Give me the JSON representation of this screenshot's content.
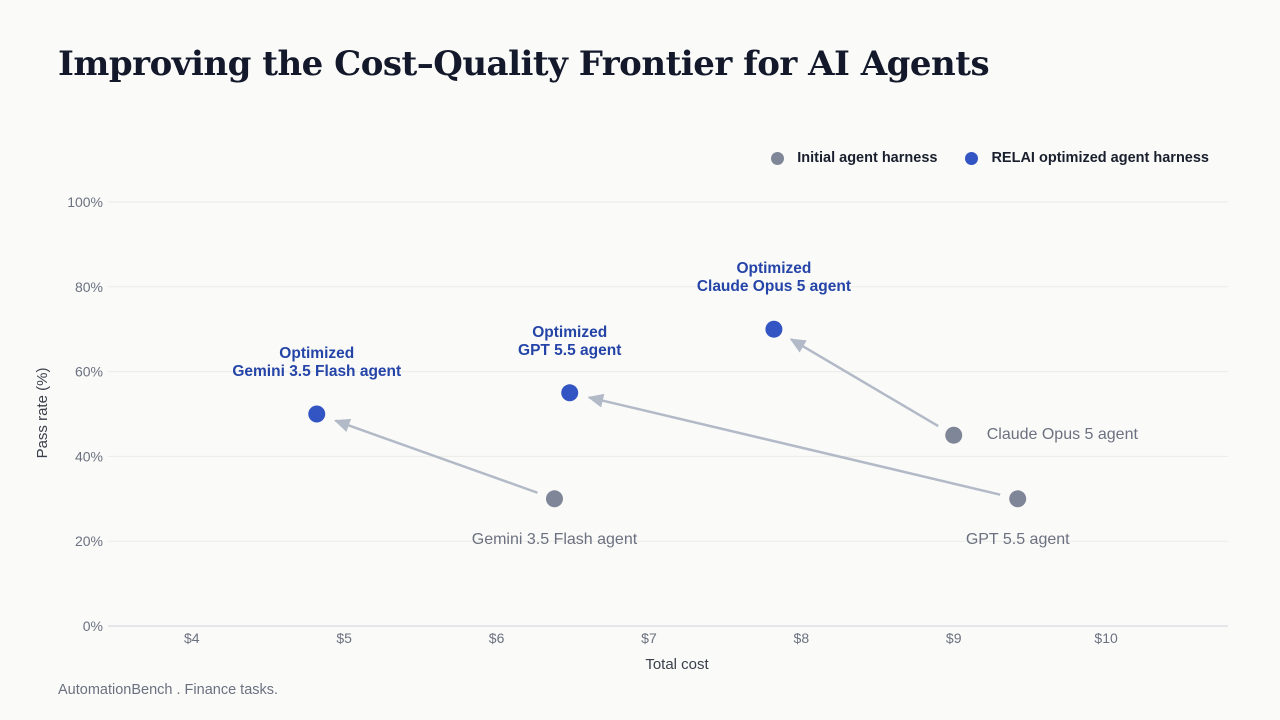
{
  "page": {
    "title": "Improving the Cost–Quality Frontier for AI Agents",
    "footnote": "AutomationBench . Finance tasks."
  },
  "colors": {
    "initial": "#7f8698",
    "optimized": "#3355c4",
    "arrow": "#b3bac7",
    "grid": "#ebebe8",
    "axis_text": "#6b7180",
    "initial_label": "#6b7180",
    "optimized_label": "#2444a8"
  },
  "legend": {
    "initial_label": "Initial agent harness",
    "optimized_label": "RELAI optimized agent harness"
  },
  "chart_data": {
    "type": "scatter",
    "xlabel": "Total cost",
    "ylabel": "Pass rate (%)",
    "xlim": [
      3.45,
      10.8
    ],
    "ylim": [
      0,
      100
    ],
    "x_ticks": [
      4,
      5,
      6,
      7,
      8,
      9,
      10
    ],
    "x_tick_labels": [
      "$4",
      "$5",
      "$6",
      "$7",
      "$8",
      "$9",
      "$10"
    ],
    "y_ticks": [
      0,
      20,
      40,
      60,
      80,
      100
    ],
    "y_tick_labels": [
      "0%",
      "20%",
      "40%",
      "60%",
      "80%",
      "100%"
    ],
    "grid": "horizontal",
    "legend_position": "top-right",
    "series": [
      {
        "name": "Initial agent harness",
        "points": [
          {
            "label": "Gemini 3.5 Flash agent",
            "x": 6.38,
            "y": 30,
            "label_pos": "below"
          },
          {
            "label": "Claude Opus 5 agent",
            "x": 9.0,
            "y": 45,
            "label_pos": "right"
          },
          {
            "label": "GPT 5.5 agent",
            "x": 9.42,
            "y": 30,
            "label_pos": "below"
          }
        ]
      },
      {
        "name": "RELAI optimized agent harness",
        "points": [
          {
            "label_lines": [
              "Optimized",
              "Gemini 3.5 Flash agent"
            ],
            "x": 4.82,
            "y": 50
          },
          {
            "label_lines": [
              "Optimized",
              "GPT 5.5 agent"
            ],
            "x": 6.48,
            "y": 55
          },
          {
            "label_lines": [
              "Optimized",
              "Claude Opus 5 agent"
            ],
            "x": 7.82,
            "y": 70
          }
        ]
      }
    ],
    "arrows": [
      {
        "from": [
          6.38,
          30
        ],
        "to": [
          4.82,
          50
        ]
      },
      {
        "from": [
          9.42,
          30
        ],
        "to": [
          6.48,
          55
        ]
      },
      {
        "from": [
          9.0,
          45
        ],
        "to": [
          7.82,
          70
        ]
      }
    ]
  }
}
